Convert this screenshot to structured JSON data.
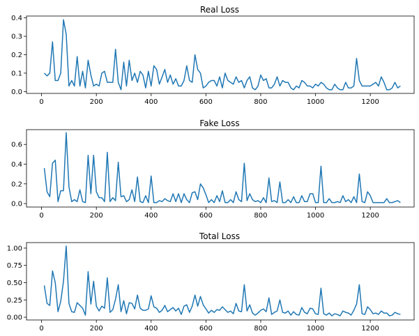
{
  "chart_data": [
    {
      "type": "line",
      "title": "Real Loss",
      "xlabel": "",
      "ylabel": "",
      "xlim": [
        -55,
        1360
      ],
      "ylim": [
        -0.01,
        0.41
      ],
      "xticks": [
        0,
        200,
        400,
        600,
        800,
        1000,
        1200
      ],
      "yticks": [
        0.0,
        0.1,
        0.2,
        0.3,
        0.4
      ],
      "ytick_labels": [
        "0.0",
        "0.1",
        "0.2",
        "0.3",
        "0.4"
      ],
      "grid": false,
      "color": "#1f77b4",
      "series": [
        {
          "name": "Real Loss",
          "values": [
            0.1,
            0.085,
            0.1,
            0.27,
            0.06,
            0.06,
            0.1,
            0.39,
            0.31,
            0.03,
            0.06,
            0.03,
            0.19,
            0.03,
            0.11,
            0.02,
            0.17,
            0.09,
            0.03,
            0.04,
            0.03,
            0.1,
            0.11,
            0.05,
            0.05,
            0.05,
            0.23,
            0.05,
            0.01,
            0.16,
            0.03,
            0.17,
            0.06,
            0.1,
            0.05,
            0.11,
            0.09,
            0.02,
            0.11,
            0.03,
            0.14,
            0.12,
            0.04,
            0.08,
            0.12,
            0.05,
            0.09,
            0.04,
            0.07,
            0.03,
            0.03,
            0.06,
            0.14,
            0.06,
            0.05,
            0.2,
            0.12,
            0.1,
            0.02,
            0.03,
            0.05,
            0.06,
            0.06,
            0.03,
            0.08,
            0.02,
            0.1,
            0.06,
            0.05,
            0.04,
            0.08,
            0.05,
            0.06,
            0.02,
            0.06,
            0.08,
            0.02,
            0.01,
            0.03,
            0.09,
            0.06,
            0.07,
            0.02,
            0.02,
            0.04,
            0.08,
            0.03,
            0.06,
            0.05,
            0.05,
            0.02,
            0.01,
            0.03,
            0.02,
            0.06,
            0.05,
            0.03,
            0.03,
            0.02,
            0.04,
            0.03,
            0.05,
            0.04,
            0.02,
            0.01,
            0.01,
            0.04,
            0.02,
            0.01,
            0.01,
            0.05,
            0.02,
            0.02,
            0.03,
            0.18,
            0.06,
            0.03,
            0.03,
            0.03,
            0.03,
            0.04,
            0.05,
            0.03,
            0.08,
            0.05,
            0.01,
            0.01,
            0.02,
            0.05,
            0.02,
            0.03
          ]
        }
      ]
    },
    {
      "type": "line",
      "title": "Fake Loss",
      "xlabel": "",
      "ylabel": "",
      "xlim": [
        -55,
        1360
      ],
      "ylim": [
        -0.035,
        0.75
      ],
      "xticks": [
        0,
        200,
        400,
        600,
        800,
        1000,
        1200
      ],
      "yticks": [
        0.0,
        0.2,
        0.4,
        0.6
      ],
      "ytick_labels": [
        "0.0",
        "0.2",
        "0.4",
        "0.6"
      ],
      "grid": false,
      "color": "#1f77b4",
      "series": [
        {
          "name": "Fake Loss",
          "values": [
            0.36,
            0.12,
            0.07,
            0.41,
            0.44,
            0.02,
            0.13,
            0.13,
            0.72,
            0.17,
            0.02,
            0.04,
            0.02,
            0.14,
            0.02,
            0.01,
            0.49,
            0.1,
            0.49,
            0.12,
            0.06,
            0.06,
            0.02,
            0.52,
            0.02,
            0.06,
            0.03,
            0.42,
            0.07,
            0.08,
            0.02,
            0.04,
            0.14,
            0.02,
            0.27,
            0.02,
            0.01,
            0.08,
            0.01,
            0.28,
            0.01,
            0.01,
            0.03,
            0.02,
            0.05,
            0.03,
            0.02,
            0.1,
            0.02,
            0.1,
            0.01,
            0.1,
            0.04,
            0.01,
            0.11,
            0.12,
            0.04,
            0.2,
            0.16,
            0.09,
            0.01,
            0.04,
            0.01,
            0.08,
            0.02,
            0.13,
            0.01,
            0.01,
            0.04,
            0.01,
            0.12,
            0.04,
            0.02,
            0.41,
            0.03,
            0.1,
            0.04,
            0.02,
            0.03,
            0.01,
            0.06,
            0.01,
            0.26,
            0.02,
            0.03,
            0.01,
            0.22,
            0.01,
            0.01,
            0.04,
            0.01,
            0.07,
            0.01,
            0.01,
            0.08,
            0.02,
            0.02,
            0.1,
            0.1,
            0.01,
            0.01,
            0.38,
            0.01,
            0.01,
            0.05,
            0.01,
            0.01,
            0.02,
            0.01,
            0.08,
            0.02,
            0.04,
            0.01,
            0.07,
            0.01,
            0.3,
            0.02,
            0.01,
            0.12,
            0.08,
            0.01,
            0.01,
            0.01,
            0.01,
            0.01,
            0.05,
            0.01,
            0.01,
            0.02,
            0.03,
            0.01
          ]
        }
      ]
    },
    {
      "type": "line",
      "title": "Total Loss",
      "xlabel": "",
      "ylabel": "",
      "xlim": [
        -55,
        1360
      ],
      "ylim": [
        -0.04,
        1.08
      ],
      "xticks": [
        0,
        200,
        400,
        600,
        800,
        1000,
        1200
      ],
      "yticks": [
        0.0,
        0.25,
        0.5,
        0.75,
        1.0
      ],
      "ytick_labels": [
        "0.00",
        "0.25",
        "0.50",
        "0.75",
        "1.00"
      ],
      "grid": false,
      "color": "#1f77b4",
      "series": [
        {
          "name": "Total Loss",
          "values": [
            0.46,
            0.2,
            0.17,
            0.67,
            0.5,
            0.08,
            0.23,
            0.52,
            1.03,
            0.2,
            0.08,
            0.07,
            0.21,
            0.17,
            0.13,
            0.03,
            0.66,
            0.19,
            0.52,
            0.16,
            0.09,
            0.16,
            0.13,
            0.57,
            0.07,
            0.11,
            0.26,
            0.47,
            0.08,
            0.24,
            0.05,
            0.21,
            0.2,
            0.12,
            0.32,
            0.13,
            0.1,
            0.1,
            0.12,
            0.31,
            0.15,
            0.13,
            0.07,
            0.1,
            0.17,
            0.08,
            0.11,
            0.14,
            0.09,
            0.13,
            0.04,
            0.16,
            0.18,
            0.07,
            0.16,
            0.32,
            0.16,
            0.3,
            0.18,
            0.12,
            0.06,
            0.1,
            0.07,
            0.11,
            0.1,
            0.15,
            0.11,
            0.07,
            0.09,
            0.05,
            0.2,
            0.09,
            0.08,
            0.47,
            0.09,
            0.18,
            0.06,
            0.03,
            0.06,
            0.1,
            0.12,
            0.08,
            0.28,
            0.04,
            0.07,
            0.09,
            0.25,
            0.07,
            0.06,
            0.09,
            0.03,
            0.08,
            0.04,
            0.03,
            0.14,
            0.07,
            0.05,
            0.13,
            0.12,
            0.05,
            0.04,
            0.42,
            0.05,
            0.03,
            0.06,
            0.02,
            0.05,
            0.04,
            0.02,
            0.09,
            0.07,
            0.06,
            0.03,
            0.1,
            0.19,
            0.47,
            0.05,
            0.04,
            0.15,
            0.11,
            0.05,
            0.06,
            0.04,
            0.09,
            0.06,
            0.06,
            0.02,
            0.03,
            0.07,
            0.05,
            0.04
          ]
        }
      ]
    }
  ]
}
